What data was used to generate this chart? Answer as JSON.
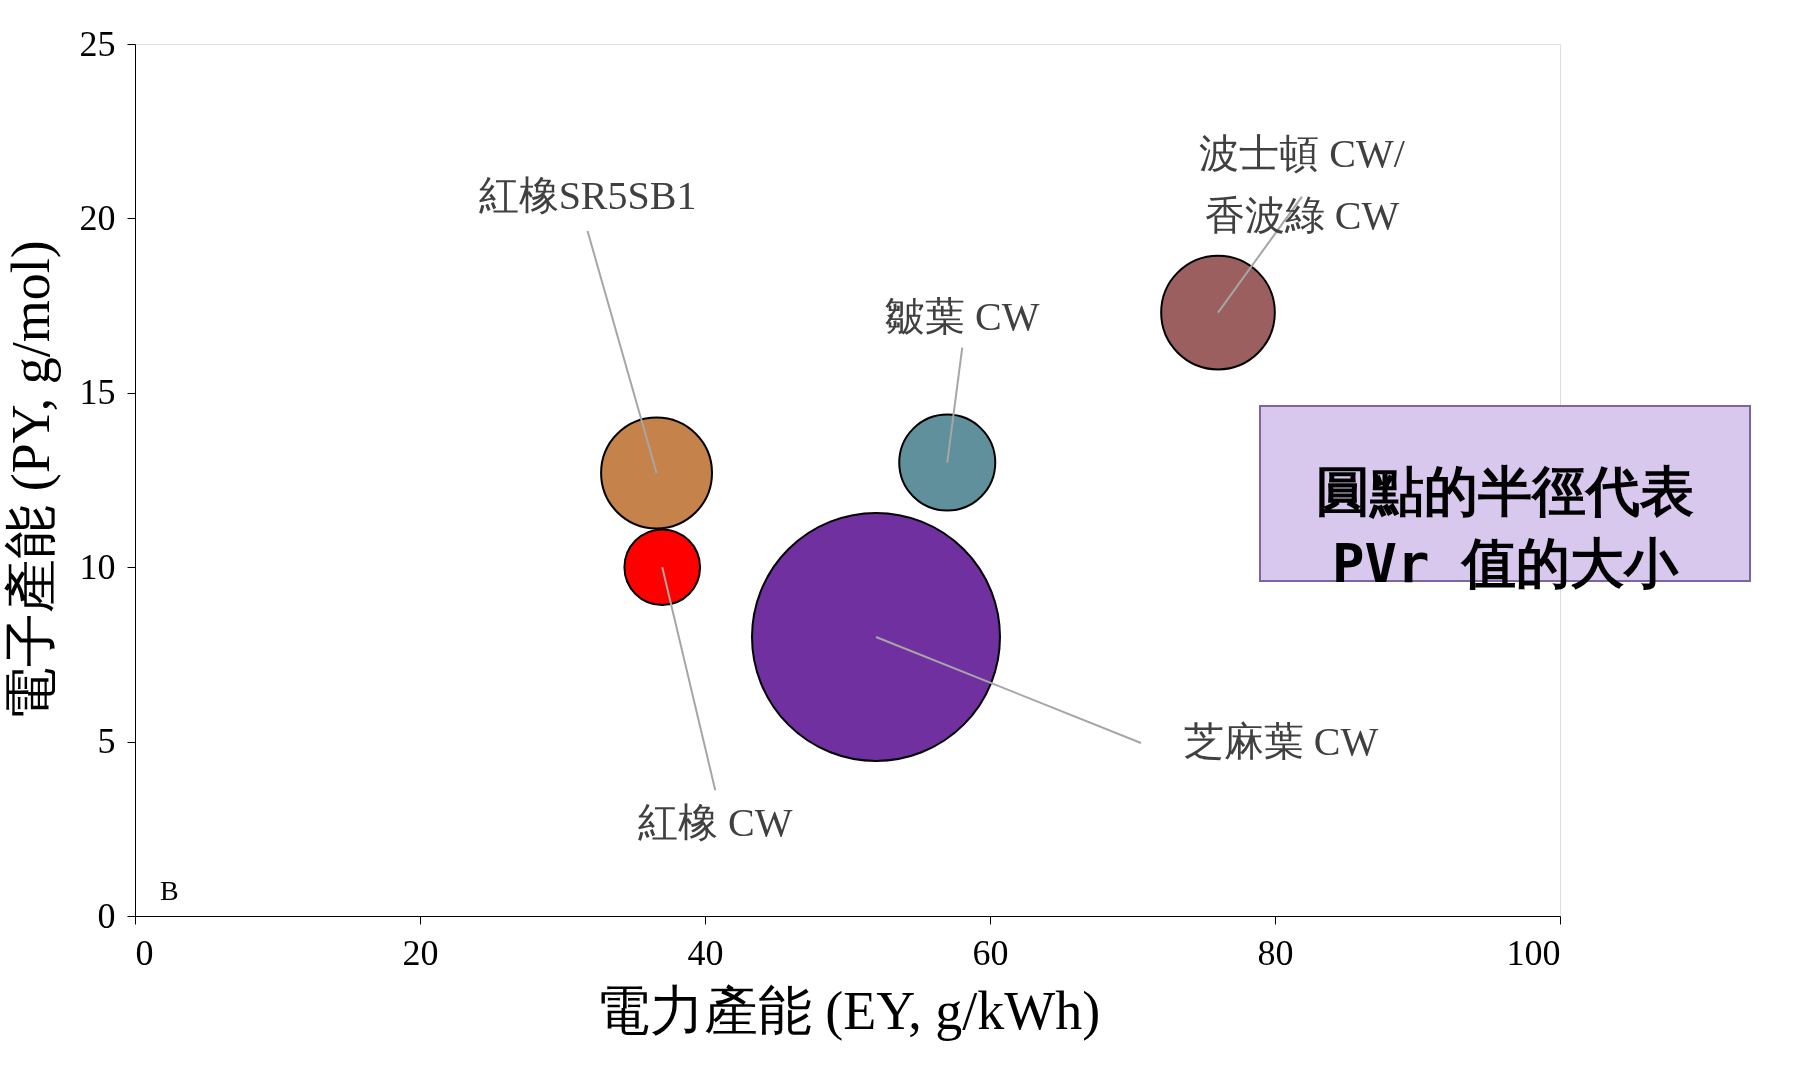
{
  "chart_data": {
    "type": "bubble",
    "xlabel": "電力產能 (EY, g/kWh)",
    "ylabel": "電子產能 (PY, g/mol)",
    "xlim": [
      0,
      100
    ],
    "xticks": [
      0,
      20,
      40,
      60,
      80,
      100
    ],
    "ylim": [
      0,
      25
    ],
    "yticks": [
      0,
      5,
      10,
      15,
      20,
      25
    ],
    "grid": false,
    "legend": false,
    "series": [
      {
        "name": "紅橡SR5SB1",
        "color": "#c5824a",
        "x": [
          36.6
        ],
        "values": [
          12.7
        ],
        "sizes": [
          0.2
        ]
      },
      {
        "name": "紅橡 CW",
        "color": "#ff0000",
        "x": [
          37.0
        ],
        "values": [
          10.0
        ],
        "sizes": [
          0.093
        ]
      },
      {
        "name": "皺葉 CW",
        "color": "#5f909c",
        "x": [
          57.0
        ],
        "values": [
          13.0
        ],
        "sizes": [
          0.15
        ]
      },
      {
        "name": "芝麻葉 CW",
        "color": "#7030a0",
        "x": [
          52.0
        ],
        "values": [
          8.0
        ],
        "sizes": [
          1
        ]
      },
      {
        "name": "波士頓 CW/\n香波綠 CW",
        "color": "#9b5f5f",
        "x": [
          76.0
        ],
        "values": [
          17.3
        ],
        "sizes": [
          0.21
        ]
      }
    ],
    "annotations": [
      "B",
      "圓點的半徑代表\nPVr 值的大小"
    ]
  }
}
